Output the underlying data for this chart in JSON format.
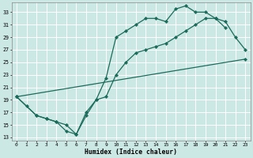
{
  "xlabel": "Humidex (Indice chaleur)",
  "bg_color": "#cce8e5",
  "grid_color": "#b0d8d4",
  "line_color": "#1a6b5a",
  "xlim": [
    -0.5,
    23.5
  ],
  "ylim": [
    12.5,
    34.5
  ],
  "yticks": [
    13,
    15,
    17,
    19,
    21,
    23,
    25,
    27,
    29,
    31,
    33
  ],
  "xticks": [
    0,
    1,
    2,
    3,
    4,
    5,
    6,
    7,
    8,
    9,
    10,
    11,
    12,
    13,
    14,
    15,
    16,
    17,
    18,
    19,
    20,
    21,
    22,
    23
  ],
  "series": [
    {
      "x": [
        0,
        1,
        2,
        3,
        4,
        5,
        6,
        7,
        8,
        9,
        10,
        11,
        12,
        13,
        14,
        15,
        16,
        17,
        18,
        19,
        20,
        21
      ],
      "y": [
        19.5,
        18.0,
        16.5,
        16.0,
        15.5,
        14.0,
        13.5,
        16.5,
        19.0,
        22.5,
        29.0,
        30.0,
        31.0,
        32.0,
        32.0,
        31.5,
        33.5,
        34.0,
        33.0,
        33.0,
        32.0,
        30.5
      ]
    },
    {
      "x": [
        0,
        2,
        3,
        4,
        5,
        6,
        7,
        8,
        9,
        10,
        11,
        12,
        13,
        14,
        15,
        16,
        17,
        18,
        19,
        20,
        21,
        22,
        23
      ],
      "y": [
        19.5,
        16.5,
        16.0,
        15.5,
        15.0,
        13.5,
        17.0,
        19.0,
        19.5,
        23.0,
        25.0,
        26.5,
        27.0,
        27.5,
        28.0,
        29.0,
        30.0,
        31.0,
        32.0,
        32.0,
        31.5,
        29.0,
        27.0
      ]
    },
    {
      "x": [
        0,
        23
      ],
      "y": [
        19.5,
        25.5
      ]
    }
  ]
}
